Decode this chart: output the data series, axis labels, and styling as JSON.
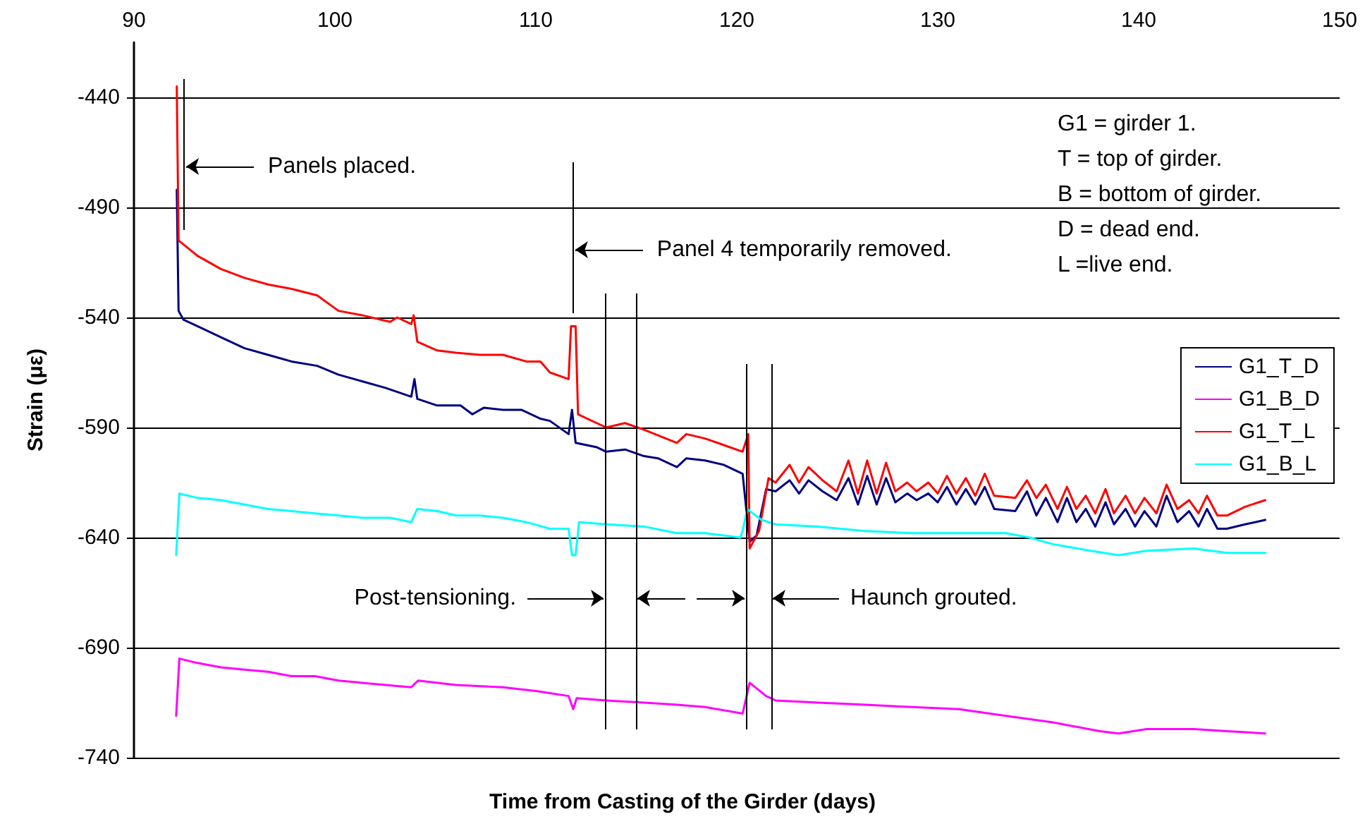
{
  "chart_data": {
    "type": "line",
    "xlabel": "Time from Casting of the Girder (days)",
    "ylabel": "Strain (με)",
    "xlim": [
      90,
      150
    ],
    "xticks": [
      90,
      100,
      110,
      120,
      130,
      140,
      150
    ],
    "ylim": [
      -740,
      -415
    ],
    "yticks": [
      -740,
      -690,
      -640,
      -590,
      -540,
      -490,
      -440
    ],
    "grid": "y",
    "legend": "right",
    "marker": "none",
    "line_style": "solid",
    "annotations": [
      "G1 = girder 1.",
      "T = top of girder.",
      "B = bottom of girder.",
      "D = dead end.",
      "L =live end."
    ],
    "ref_lines": [
      {
        "axis": "x",
        "value": 92.46,
        "label": "Panels placed."
      },
      {
        "axis": "x",
        "value": 111.82,
        "label": "Panel 4 temporarily removed."
      },
      {
        "axis": "x",
        "value": 113.44,
        "label": "Post-tensioning."
      },
      {
        "axis": "x",
        "value": 114.98
      },
      {
        "axis": "x",
        "value": 120.46
      },
      {
        "axis": "x",
        "value": 121.72,
        "label": "Haunch grouted."
      }
    ],
    "series": [
      {
        "name": "G1_T_D",
        "color": "#000080",
        "x": [
          92.13,
          92.22,
          92.46,
          93.16,
          94.33,
          95.5,
          96.67,
          97.84,
          99.12,
          100.18,
          101.35,
          102.52,
          103.8,
          103.96,
          104.1,
          105.09,
          106.25,
          106.84,
          107.42,
          108.36,
          109.3,
          110.23,
          110.7,
          111.63,
          111.8,
          111.98,
          113.04,
          113.5,
          114.44,
          115.38,
          116.08,
          117.02,
          117.49,
          118.42,
          119.36,
          120.29,
          120.64,
          120.99,
          121.46,
          121.93,
          122.63,
          123.1,
          123.57,
          124.27,
          124.97,
          125.56,
          126.03,
          126.49,
          126.96,
          127.43,
          127.89,
          128.48,
          128.95,
          129.53,
          130.0,
          130.46,
          130.93,
          131.4,
          131.87,
          132.34,
          132.81,
          133.86,
          134.44,
          134.91,
          135.38,
          135.96,
          136.43,
          136.9,
          137.37,
          137.84,
          138.35,
          138.77,
          139.35,
          139.82,
          140.29,
          140.88,
          141.39,
          141.93,
          142.51,
          142.98,
          143.4,
          143.92,
          144.39,
          145.3,
          146.3
        ],
        "values": [
          -482,
          -537,
          -541,
          -544,
          -549,
          -554,
          -557,
          -560,
          -562,
          -566,
          -569,
          -572,
          -576,
          -568,
          -577,
          -580,
          -580,
          -584,
          -581,
          -582,
          -582,
          -586,
          -587,
          -593,
          -582,
          -597,
          -599,
          -601,
          -600,
          -603,
          -604,
          -608,
          -604,
          -605,
          -607,
          -611,
          -642,
          -639,
          -618,
          -619,
          -614,
          -620,
          -614,
          -619,
          -623,
          -613,
          -625,
          -612,
          -625,
          -613,
          -624,
          -620,
          -623,
          -620,
          -624,
          -617,
          -625,
          -618,
          -625,
          -617,
          -627,
          -628,
          -619,
          -630,
          -622,
          -633,
          -622,
          -633,
          -627,
          -635,
          -624,
          -634,
          -627,
          -635,
          -628,
          -635,
          -621,
          -633,
          -628,
          -635,
          -627,
          -636,
          -636,
          -634,
          -632
        ]
      },
      {
        "name": "G1_B_D",
        "color": "#ff00ff",
        "x": [
          92.1,
          92.26,
          93.16,
          94.33,
          95.5,
          96.67,
          97.84,
          99.01,
          100.18,
          101.35,
          102.52,
          103.8,
          104.14,
          106.02,
          108.36,
          110.23,
          111.63,
          111.86,
          112.03,
          113.5,
          115.38,
          117.02,
          118.42,
          120.29,
          120.64,
          121.46,
          121.93,
          124.04,
          126.38,
          128.72,
          131.05,
          133.39,
          135.73,
          138.07,
          139.0,
          140.4,
          142.74,
          144.39,
          146.3
        ],
        "values": [
          -721,
          -695,
          -697,
          -699,
          -700,
          -701,
          -703,
          -703,
          -705,
          -706,
          -707,
          -708,
          -705,
          -707,
          -708,
          -710,
          -712,
          -718,
          -713,
          -714,
          -715,
          -716,
          -717,
          -720,
          -706,
          -712,
          -714,
          -715,
          -716,
          -717,
          -718,
          -721,
          -724,
          -728,
          -729,
          -727,
          -727,
          -728,
          -729
        ]
      },
      {
        "name": "G1_T_L",
        "color": "#ff0000",
        "x": [
          92.13,
          92.22,
          93.16,
          94.33,
          95.5,
          96.67,
          97.84,
          99.12,
          100.18,
          101.35,
          102.75,
          103.1,
          103.8,
          103.92,
          104.1,
          105.09,
          106.02,
          107.19,
          108.36,
          109.53,
          110.23,
          110.7,
          111.63,
          111.75,
          111.98,
          112.1,
          113.5,
          114.44,
          115.38,
          117.02,
          117.49,
          118.42,
          119.36,
          120.29,
          120.57,
          120.64,
          121.11,
          121.58,
          121.93,
          122.63,
          123.1,
          123.57,
          124.27,
          124.97,
          125.56,
          126.03,
          126.49,
          126.96,
          127.43,
          127.89,
          128.48,
          128.95,
          129.53,
          130.0,
          130.46,
          130.93,
          131.4,
          131.87,
          132.34,
          132.81,
          133.86,
          134.44,
          134.91,
          135.38,
          135.96,
          136.43,
          136.9,
          137.37,
          137.84,
          138.35,
          138.77,
          139.35,
          139.82,
          140.29,
          140.88,
          141.39,
          141.93,
          142.51,
          142.98,
          143.4,
          143.92,
          144.39,
          145.3,
          146.3
        ],
        "values": [
          -435,
          -505,
          -512,
          -518,
          -522,
          -525,
          -527,
          -530,
          -537,
          -539,
          -542,
          -540,
          -543,
          -539,
          -551,
          -555,
          -556,
          -557,
          -557,
          -560,
          -560,
          -565,
          -568,
          -544,
          -544,
          -584,
          -590,
          -588,
          -591,
          -597,
          -593,
          -595,
          -598,
          -601,
          -593,
          -645,
          -637,
          -613,
          -615,
          -607,
          -615,
          -608,
          -614,
          -619,
          -605,
          -620,
          -605,
          -620,
          -606,
          -619,
          -615,
          -619,
          -615,
          -620,
          -612,
          -620,
          -613,
          -621,
          -611,
          -621,
          -622,
          -614,
          -622,
          -616,
          -627,
          -617,
          -627,
          -621,
          -629,
          -618,
          -629,
          -621,
          -629,
          -622,
          -629,
          -616,
          -627,
          -623,
          -629,
          -621,
          -630,
          -630,
          -626,
          -623
        ]
      },
      {
        "name": "G1_B_L",
        "color": "#00ffff",
        "x": [
          92.1,
          92.26,
          93.16,
          94.33,
          95.5,
          96.67,
          97.84,
          99.01,
          100.18,
          101.35,
          102.75,
          103.8,
          104.1,
          105.09,
          106.02,
          107.19,
          108.36,
          109.53,
          110.7,
          111.63,
          111.8,
          111.98,
          112.15,
          113.5,
          115.38,
          117.02,
          118.42,
          120.17,
          120.29,
          120.52,
          121.23,
          121.93,
          124.04,
          126.38,
          128.72,
          131.05,
          133.39,
          134.56,
          135.73,
          137.6,
          139.0,
          140.4,
          142.74,
          144.39,
          146.3
        ],
        "values": [
          -648,
          -620,
          -622,
          -623,
          -625,
          -627,
          -628,
          -629,
          -630,
          -631,
          -631,
          -633,
          -627,
          -628,
          -630,
          -630,
          -631,
          -633,
          -636,
          -636,
          -648,
          -648,
          -633,
          -634,
          -635,
          -638,
          -638,
          -640,
          -637,
          -627,
          -632,
          -634,
          -635,
          -637,
          -638,
          -638,
          -638,
          -640,
          -643,
          -646,
          -648,
          -646,
          -645,
          -647,
          -647
        ]
      }
    ]
  }
}
